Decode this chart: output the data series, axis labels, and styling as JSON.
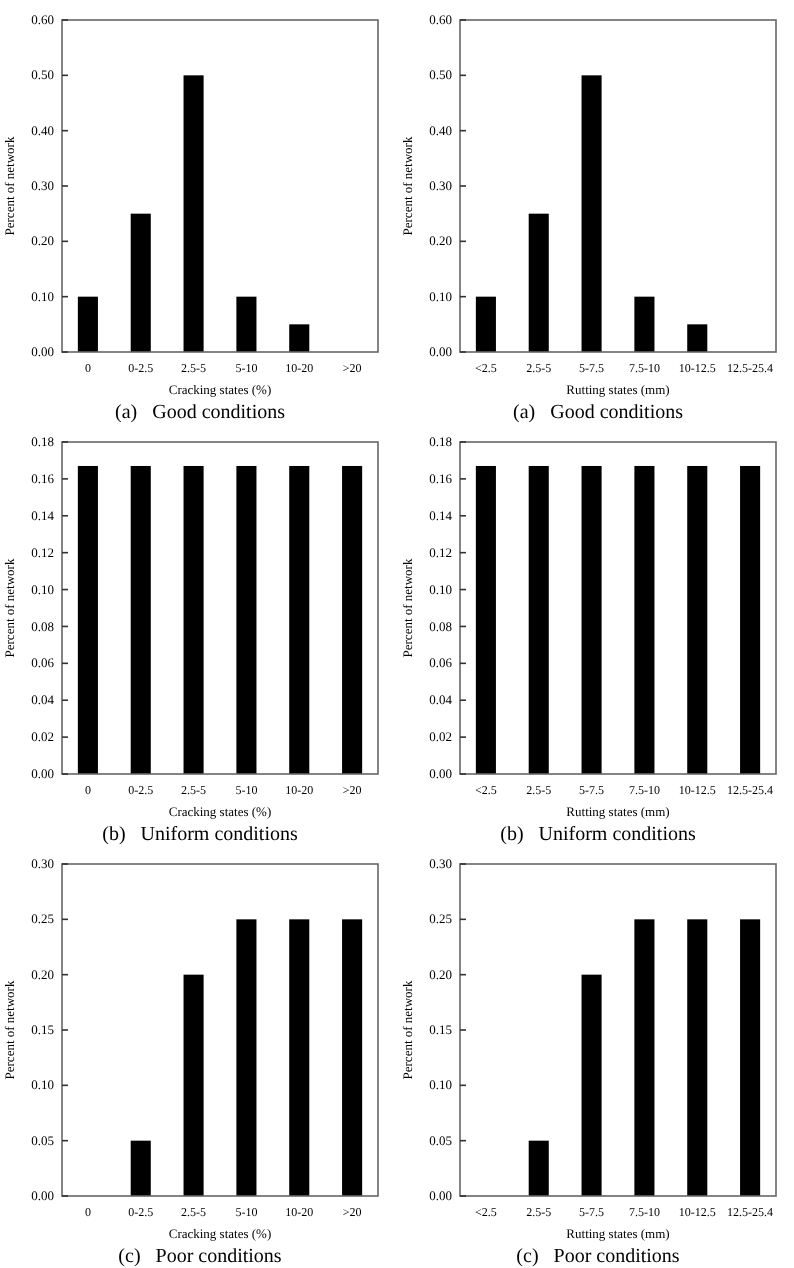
{
  "chart_data": [
    {
      "type": "bar",
      "title": "(a)   Good conditions",
      "xlabel": "Cracking states (%)",
      "ylabel": "Percent of network",
      "categories": [
        "0",
        "0-2.5",
        "2.5-5",
        "5-10",
        "10-20",
        ">20"
      ],
      "values": [
        0.1,
        0.25,
        0.5,
        0.1,
        0.05,
        0
      ],
      "color": "#000000",
      "ylim": [
        0,
        0.6
      ],
      "yticks": [
        {
          "value": 0,
          "label": "0.00"
        },
        {
          "value": 0.1,
          "label": "0.10"
        },
        {
          "value": 0.2,
          "label": "0.20"
        },
        {
          "value": 0.3,
          "label": "0.30"
        },
        {
          "value": 0.4,
          "label": "0.40"
        },
        {
          "value": 0.5,
          "label": "0.50"
        },
        {
          "value": 0.6,
          "label": "0.60"
        }
      ],
      "grid": false
    },
    {
      "type": "bar",
      "title": "(a)   Good conditions",
      "xlabel": "Rutting states (mm)",
      "ylabel": "Percent of network",
      "categories": [
        "<2.5",
        "2.5-5",
        "5-7.5",
        "7.5-10",
        "10-12.5",
        "12.5-25.4"
      ],
      "values": [
        0.1,
        0.25,
        0.5,
        0.1,
        0.05,
        0
      ],
      "color": "#000000",
      "ylim": [
        0,
        0.6
      ],
      "yticks": [
        {
          "value": 0,
          "label": "0.00"
        },
        {
          "value": 0.1,
          "label": "0.10"
        },
        {
          "value": 0.2,
          "label": "0.20"
        },
        {
          "value": 0.3,
          "label": "0.30"
        },
        {
          "value": 0.4,
          "label": "0.40"
        },
        {
          "value": 0.5,
          "label": "0.50"
        },
        {
          "value": 0.6,
          "label": "0.60"
        }
      ],
      "grid": false
    },
    {
      "type": "bar",
      "title": "(b)   Uniform conditions",
      "xlabel": "Cracking states (%)",
      "ylabel": "Percent of network",
      "categories": [
        "0",
        "0-2.5",
        "2.5-5",
        "5-10",
        "10-20",
        ">20"
      ],
      "values": [
        0.167,
        0.167,
        0.167,
        0.167,
        0.167,
        0.167
      ],
      "color": "#000000",
      "ylim": [
        0,
        0.18
      ],
      "yticks": [
        {
          "value": 0,
          "label": "0.00"
        },
        {
          "value": 0.02,
          "label": "0.02"
        },
        {
          "value": 0.04,
          "label": "0.04"
        },
        {
          "value": 0.06,
          "label": "0.06"
        },
        {
          "value": 0.08,
          "label": "0.08"
        },
        {
          "value": 0.1,
          "label": "0.10"
        },
        {
          "value": 0.12,
          "label": "0.12"
        },
        {
          "value": 0.14,
          "label": "0.14"
        },
        {
          "value": 0.16,
          "label": "0.16"
        },
        {
          "value": 0.18,
          "label": "0.18"
        }
      ],
      "grid": false
    },
    {
      "type": "bar",
      "title": "(b)   Uniform conditions",
      "xlabel": "Rutting states (mm)",
      "ylabel": "Percent of network",
      "categories": [
        "<2.5",
        "2.5-5",
        "5-7.5",
        "7.5-10",
        "10-12.5",
        "12.5-25.4"
      ],
      "values": [
        0.167,
        0.167,
        0.167,
        0.167,
        0.167,
        0.167
      ],
      "color": "#000000",
      "ylim": [
        0,
        0.18
      ],
      "yticks": [
        {
          "value": 0,
          "label": "0.00"
        },
        {
          "value": 0.02,
          "label": "0.02"
        },
        {
          "value": 0.04,
          "label": "0.04"
        },
        {
          "value": 0.06,
          "label": "0.06"
        },
        {
          "value": 0.08,
          "label": "0.08"
        },
        {
          "value": 0.1,
          "label": "0.10"
        },
        {
          "value": 0.12,
          "label": "0.12"
        },
        {
          "value": 0.14,
          "label": "0.14"
        },
        {
          "value": 0.16,
          "label": "0.16"
        },
        {
          "value": 0.18,
          "label": "0.18"
        }
      ],
      "grid": false
    },
    {
      "type": "bar",
      "title": "(c)   Poor conditions",
      "xlabel": "Cracking states (%)",
      "ylabel": "Percent of network",
      "categories": [
        "0",
        "0-2.5",
        "2.5-5",
        "5-10",
        "10-20",
        ">20"
      ],
      "values": [
        0,
        0.05,
        0.2,
        0.25,
        0.25,
        0.25
      ],
      "color": "#000000",
      "ylim": [
        0,
        0.3
      ],
      "yticks": [
        {
          "value": 0,
          "label": "0.00"
        },
        {
          "value": 0.05,
          "label": "0.05"
        },
        {
          "value": 0.1,
          "label": "0.10"
        },
        {
          "value": 0.15,
          "label": "0.15"
        },
        {
          "value": 0.2,
          "label": "0.20"
        },
        {
          "value": 0.25,
          "label": "0.25"
        },
        {
          "value": 0.3,
          "label": "0.30"
        }
      ],
      "grid": false
    },
    {
      "type": "bar",
      "title": "(c)   Poor conditions",
      "xlabel": "Rutting states (mm)",
      "ylabel": "Percent of network",
      "categories": [
        "<2.5",
        "2.5-5",
        "5-7.5",
        "7.5-10",
        "10-12.5",
        "12.5-25.4"
      ],
      "values": [
        0,
        0.05,
        0.2,
        0.25,
        0.25,
        0.25
      ],
      "color": "#000000",
      "ylim": [
        0,
        0.3
      ],
      "yticks": [
        {
          "value": 0,
          "label": "0.00"
        },
        {
          "value": 0.05,
          "label": "0.05"
        },
        {
          "value": 0.1,
          "label": "0.10"
        },
        {
          "value": 0.15,
          "label": "0.15"
        },
        {
          "value": 0.2,
          "label": "0.20"
        },
        {
          "value": 0.25,
          "label": "0.25"
        },
        {
          "value": 0.3,
          "label": "0.30"
        }
      ],
      "grid": false
    }
  ]
}
